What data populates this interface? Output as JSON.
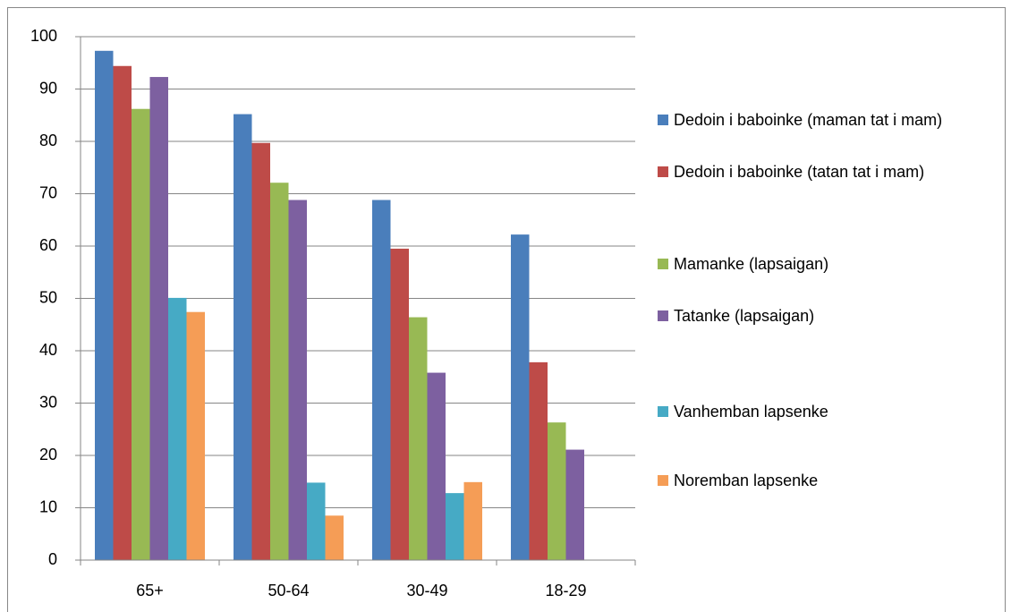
{
  "chart_data": {
    "type": "bar",
    "categories": [
      "65+",
      "50-64",
      "30-49",
      "18-29"
    ],
    "series": [
      {
        "name": "Dedoin i baboinke (maman tat i mam)",
        "color": "#4a7ebb",
        "values": [
          97.3,
          85.2,
          68.8,
          62.2
        ]
      },
      {
        "name": "Dedoin i baboinke (tatan tat i mam)",
        "color": "#be4b48",
        "values": [
          94.4,
          79.7,
          59.5,
          37.8
        ]
      },
      {
        "name": "Mamanke (lapsaigan)",
        "color": "#98b954",
        "values": [
          86.2,
          72.1,
          46.4,
          26.3
        ]
      },
      {
        "name": "Tatanke (lapsaigan)",
        "color": "#7d60a0",
        "values": [
          92.3,
          68.8,
          35.8,
          21.1
        ]
      },
      {
        "name": "Vanhemban lapsenke",
        "color": "#46aac5",
        "values": [
          50.1,
          14.8,
          12.8,
          null
        ]
      },
      {
        "name": "Noremban lapsenke",
        "color": "#f59d56",
        "values": [
          47.4,
          8.5,
          14.9,
          null
        ]
      }
    ],
    "ylim": [
      0,
      100
    ],
    "yticks": [
      0,
      10,
      20,
      30,
      40,
      50,
      60,
      70,
      80,
      90,
      100
    ],
    "grid": true,
    "legend": "right"
  }
}
